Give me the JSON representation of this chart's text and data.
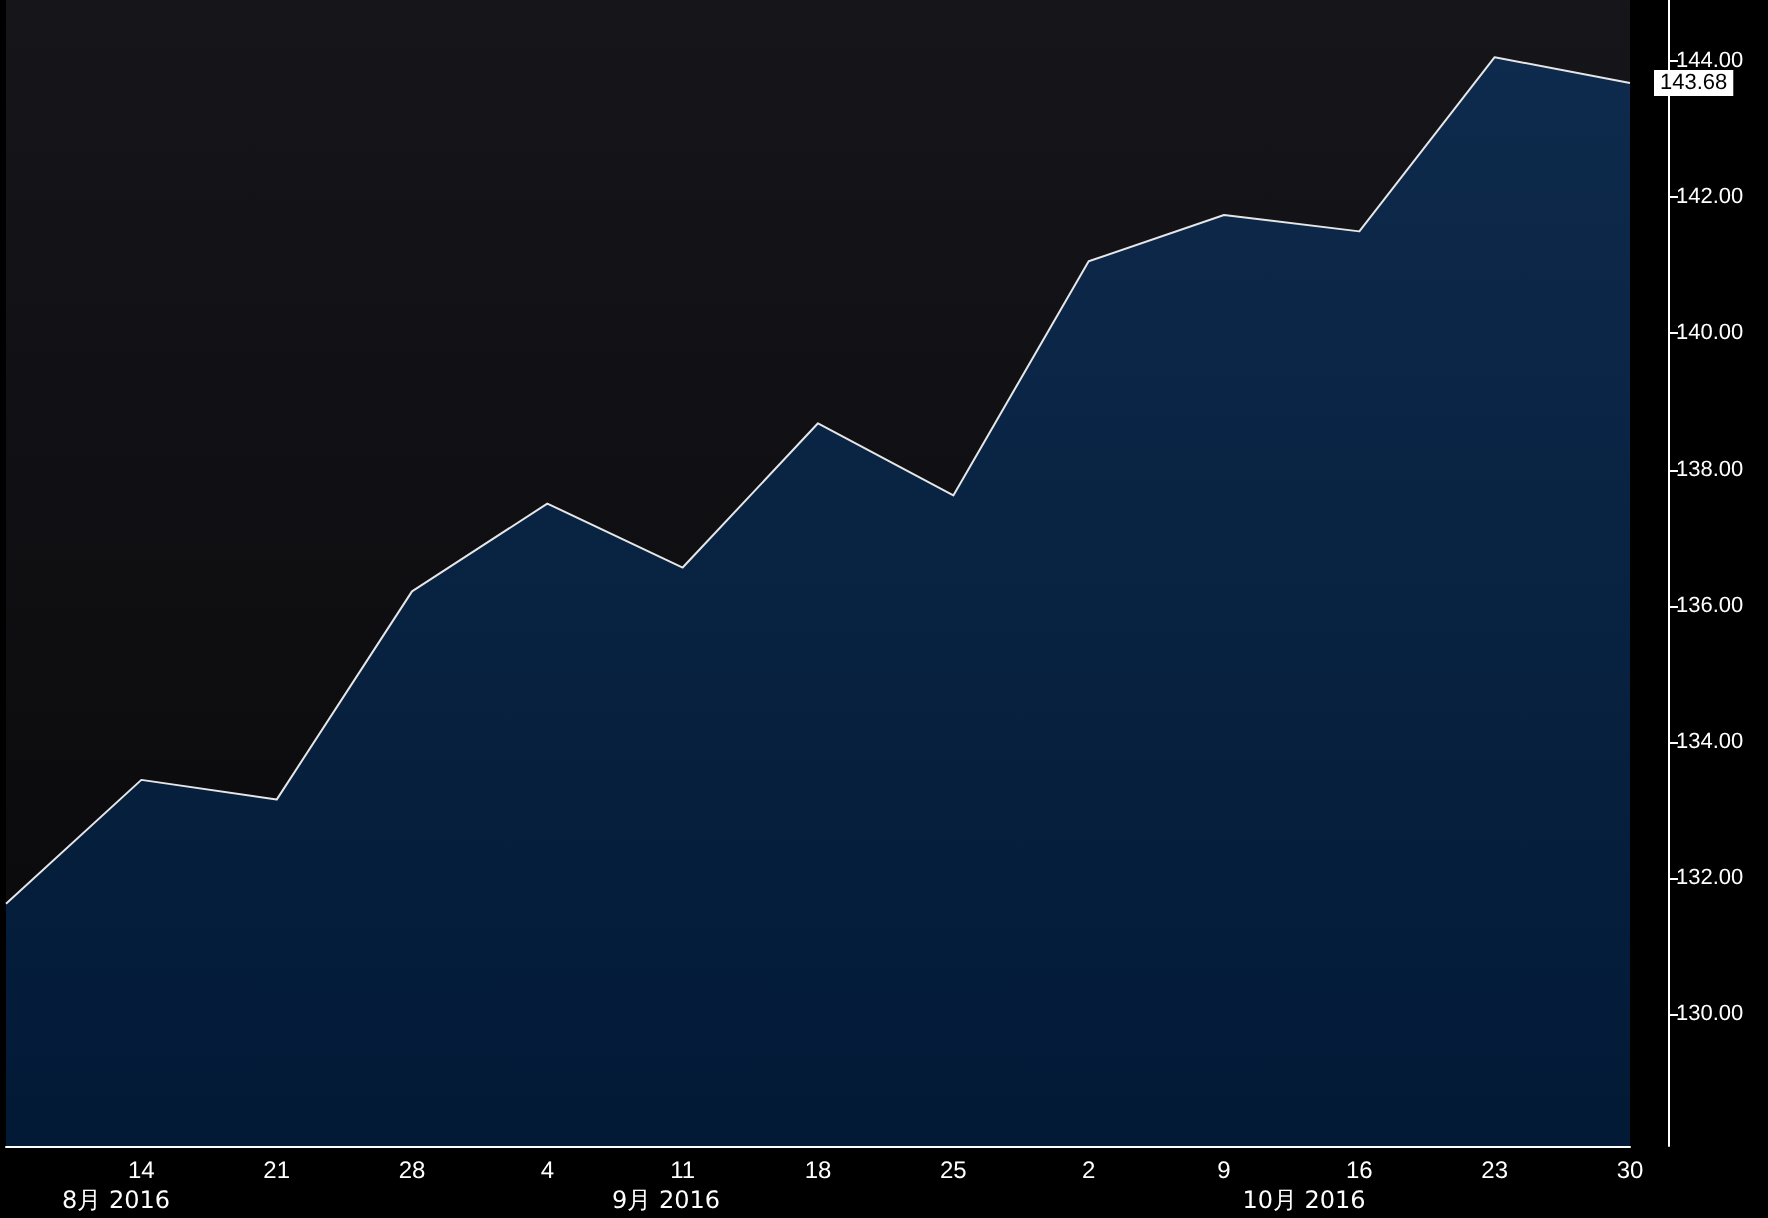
{
  "chart_data": {
    "type": "area",
    "categories": [
      null,
      "14",
      "21",
      "28",
      "4",
      "11",
      "18",
      "25",
      "2",
      "9",
      "16",
      "23",
      "30"
    ],
    "series": [
      {
        "color": "#0e2a4c",
        "values": [
          131.62,
          133.44,
          133.15,
          136.21,
          137.5,
          136.56,
          138.68,
          137.62,
          141.06,
          141.74,
          141.5,
          144.06,
          143.68
        ],
        "value_labels": [
          null,
          null,
          null,
          null,
          null,
          null,
          null,
          null,
          null,
          null,
          null,
          null,
          "143.68"
        ]
      }
    ],
    "ylim": [
      128.06,
      144.9
    ],
    "yticks": [
      {
        "value": 130,
        "label": "130.00"
      },
      {
        "value": 132,
        "label": "132.00"
      },
      {
        "value": 134,
        "label": "134.00"
      },
      {
        "value": 136,
        "label": "136.00"
      },
      {
        "value": 138,
        "label": "138.00"
      },
      {
        "value": 140,
        "label": "140.00"
      },
      {
        "value": 142,
        "label": "142.00"
      },
      {
        "value": 144,
        "label": "144.00"
      }
    ],
    "annotations": [
      "8月 2016",
      "9月 2016",
      "10月 2016"
    ],
    "grid": false
  }
}
